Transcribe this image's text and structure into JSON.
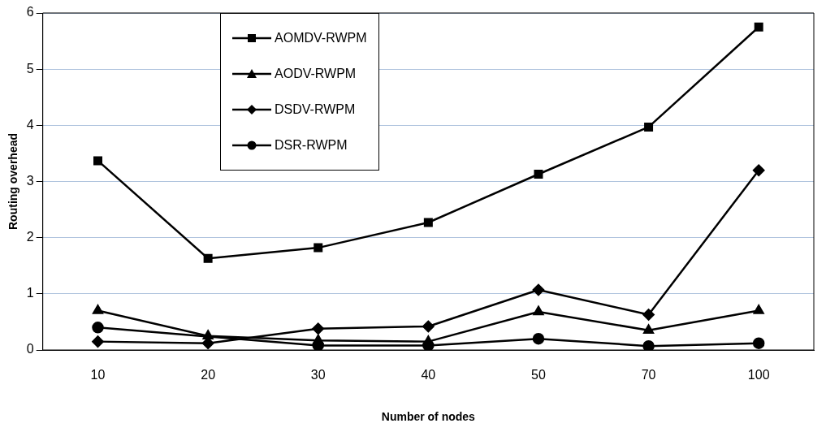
{
  "chart_data": {
    "type": "line",
    "xlabel": "Number of nodes",
    "ylabel": "Routing overhead",
    "categories": [
      "10",
      "20",
      "30",
      "40",
      "50",
      "70",
      "100"
    ],
    "series": [
      {
        "name": "AOMDV-RWPM",
        "color": "#000000",
        "marker": "square",
        "values": [
          3.37,
          1.63,
          1.82,
          2.27,
          3.13,
          3.97,
          5.75
        ]
      },
      {
        "name": "AODV-RWPM",
        "color": "#000000",
        "marker": "triangle",
        "values": [
          0.7,
          0.25,
          0.17,
          0.15,
          0.68,
          0.35,
          0.7
        ]
      },
      {
        "name": "DSDV-RWPM",
        "color": "#000000",
        "marker": "diamond",
        "values": [
          0.15,
          0.12,
          0.38,
          0.42,
          1.07,
          0.63,
          3.2
        ]
      },
      {
        "name": "DSR-RWPM",
        "color": "#000000",
        "marker": "circle",
        "values": [
          0.4,
          null,
          0.08,
          0.08,
          0.2,
          0.07,
          0.12
        ]
      }
    ],
    "ylim": [
      0,
      6
    ],
    "yticks": [
      0,
      1,
      2,
      3,
      4,
      5,
      6
    ],
    "grid": "y",
    "legend": "top",
    "line_style": "solid"
  }
}
